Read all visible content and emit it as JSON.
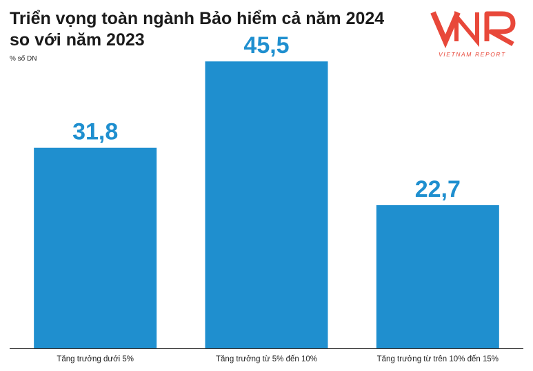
{
  "title_lines": [
    "Triển vọng toàn ngành Bảo hiểm cả năm 2024",
    "so với năm 2023"
  ],
  "logo": {
    "mark": "VNR",
    "subtitle": "VIETNAM REPORT",
    "color": "#e8483a"
  },
  "chart_data": {
    "type": "bar",
    "title": "Triển vọng toàn ngành Bảo hiểm cả năm 2024 so với năm 2023",
    "ylabel": "% số DN",
    "categories": [
      "Tăng trưởng dưới 5%",
      "Tăng trưởng từ 5% đến 10%",
      "Tăng trưởng từ trên 10% đến 15%"
    ],
    "values": [
      31.8,
      45.5,
      22.7
    ],
    "value_labels": [
      "31,8",
      "45,5",
      "22,7"
    ],
    "ylim": [
      0,
      50
    ],
    "grid": false,
    "bar_color": "#1f8fcf"
  }
}
